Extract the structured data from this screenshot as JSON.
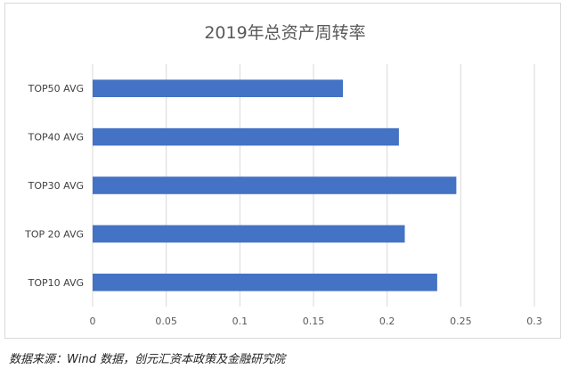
{
  "chart_data": {
    "type": "bar",
    "orientation": "horizontal",
    "title": "2019年总资产周转率",
    "categories": [
      "TOP50 AVG",
      "TOP40 AVG",
      "TOP30 AVG",
      "TOP 20 AVG",
      "TOP10 AVG"
    ],
    "values": [
      0.17,
      0.208,
      0.247,
      0.212,
      0.234
    ],
    "xlim": [
      0,
      0.3
    ],
    "xticks": [
      "0",
      "0.05",
      "0.1",
      "0.15",
      "0.2",
      "0.25",
      "0.3"
    ],
    "grid": "vertical",
    "bar_color": "#4472c4"
  },
  "source_note": "数据来源：Wind 数据，创元汇资本政策及金融研究院"
}
